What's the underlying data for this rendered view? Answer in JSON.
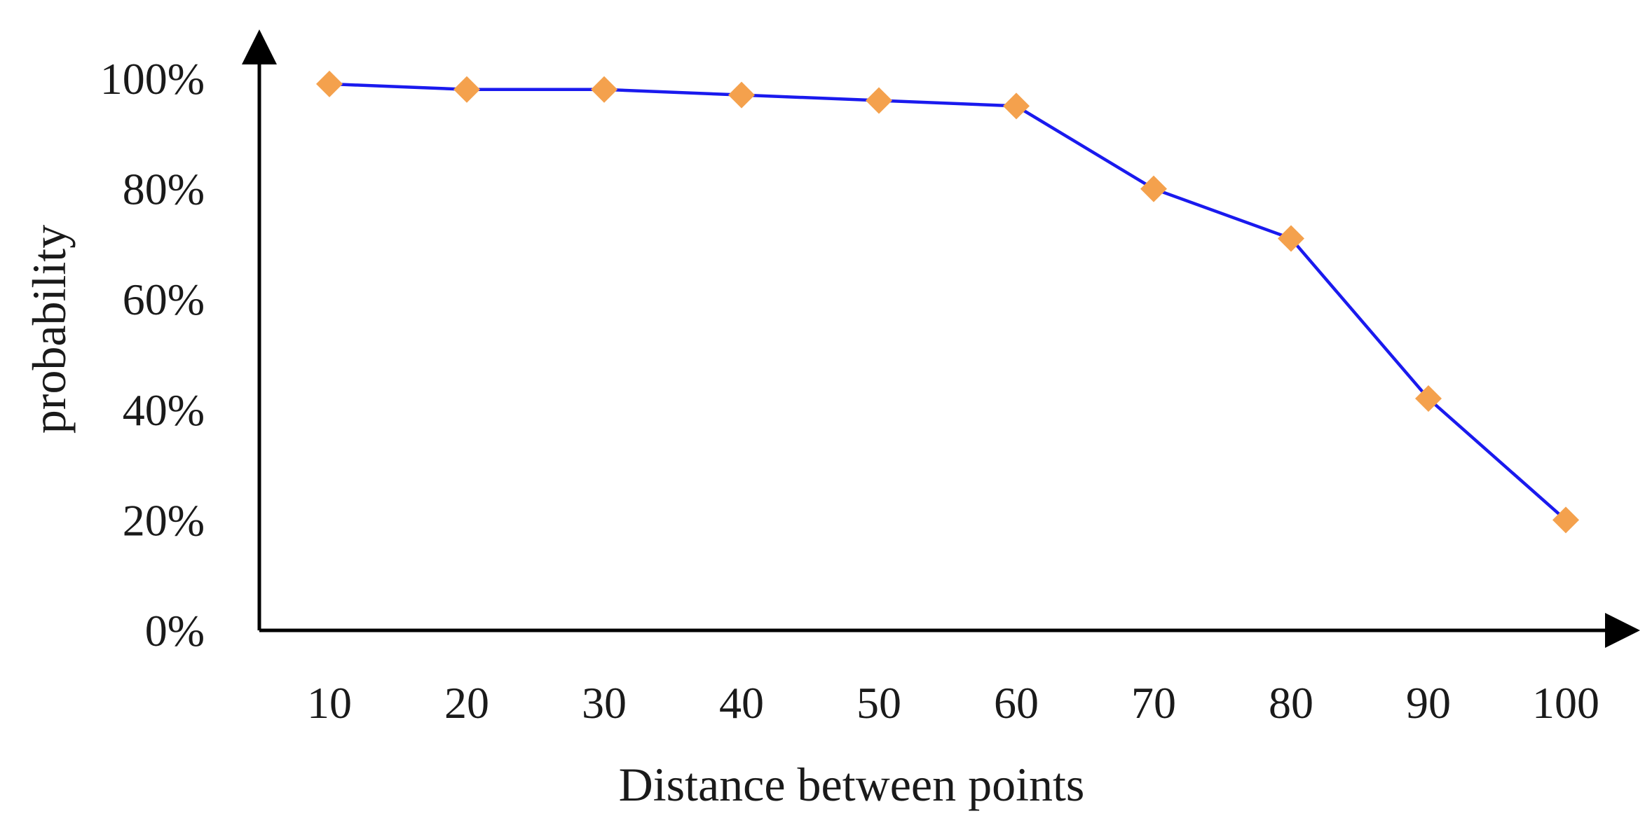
{
  "chart_data": {
    "type": "line",
    "title": "",
    "xlabel": "Distance between points",
    "ylabel": "probability",
    "x": [
      10,
      20,
      30,
      40,
      50,
      60,
      70,
      80,
      90,
      100
    ],
    "series": [
      {
        "values": [
          99,
          98,
          98,
          97,
          96,
          95,
          80,
          71,
          42,
          20
        ]
      }
    ],
    "y_ticks": [
      "0%",
      "20%",
      "40%",
      "60%",
      "80%",
      "100%"
    ],
    "x_ticks": [
      "10",
      "20",
      "30",
      "40",
      "50",
      "60",
      "70",
      "80",
      "90",
      "100"
    ],
    "ylim": [
      0,
      100
    ],
    "grid": false,
    "legend": "none",
    "colors": {
      "line": "#1a1aee",
      "marker": "#f4a14d",
      "axis": "#000000"
    }
  }
}
